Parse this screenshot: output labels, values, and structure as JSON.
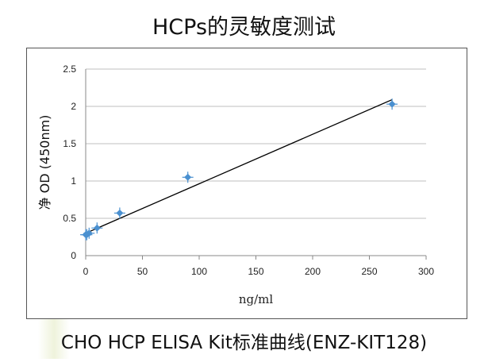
{
  "title": "HCPs的灵敏度测试",
  "caption": "CHO HCP ELISA Kit标准曲线(ENZ-KIT128)",
  "colors": {
    "points": "#4a90d0",
    "line": "#000000",
    "grid": "#bfbfbf",
    "axis": "#888888"
  },
  "chart_data": {
    "type": "scatter",
    "xlabel": "ng/ml",
    "ylabel": "净 OD (450nm)",
    "xlim": [
      0,
      300
    ],
    "ylim": [
      0,
      2.5
    ],
    "xticks": [
      "0",
      "50",
      "100",
      "150",
      "200",
      "250",
      "300"
    ],
    "yticks": [
      "0",
      "0.5",
      "1",
      "1.5",
      "2",
      "2.5"
    ],
    "grid": "horizontal",
    "points": [
      {
        "x": 0,
        "y": 0.28
      },
      {
        "x": 1,
        "y": 0.28
      },
      {
        "x": 3,
        "y": 0.3
      },
      {
        "x": 10,
        "y": 0.37
      },
      {
        "x": 30,
        "y": 0.57
      },
      {
        "x": 90,
        "y": 1.05
      },
      {
        "x": 270,
        "y": 2.03
      }
    ],
    "trendline": {
      "from": {
        "x": 0,
        "y": 0.3
      },
      "to": {
        "x": 270,
        "y": 2.09
      }
    }
  }
}
